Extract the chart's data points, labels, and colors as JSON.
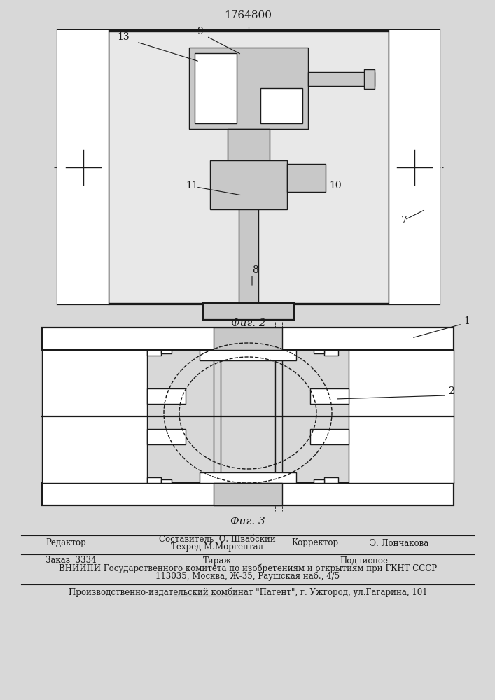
{
  "patent_number": "1764800",
  "fig2_label": "Фиг. 2",
  "fig3_label": "Фиг. 3",
  "background_color": "#d8d8d8",
  "line_color": "#1a1a1a",
  "footer": {
    "editor_label": "Редактор",
    "composer": "Составитель  О. Швабский",
    "techred": "Техред М.Моргентал",
    "corrector_label": "Корректор",
    "corrector": "Э. Лончакова",
    "order": "Заказ  3334",
    "tirazh": "Тираж",
    "podpisnoe": "Подписное",
    "vniiipi_line1": "ВНИИПИ Государственного комитета по изобретениям и открытиям при ГКНТ СССР",
    "vniiipi_line2": "113035, Москва, Ж-35, Раушская наб., 4/5",
    "publisher": "Производственно-издательский комбинат \"Патент\", г. Ужгород, ул.Гагарина, 101"
  }
}
